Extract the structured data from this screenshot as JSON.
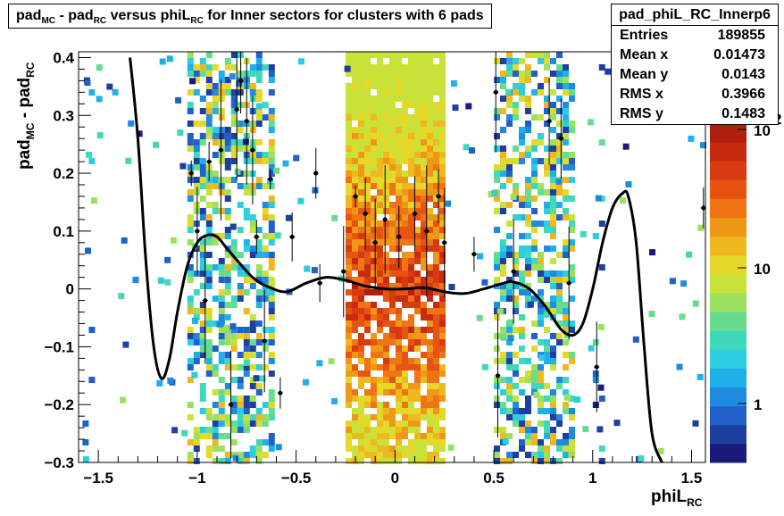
{
  "title": {
    "parts": [
      {
        "t": "pad"
      },
      {
        "sub": "MC"
      },
      {
        "t": " - pad"
      },
      {
        "sub": "RC"
      },
      {
        "t": " versus phiL"
      },
      {
        "sub": "RC"
      },
      {
        "t": " for Inner sectors for clusters with 6 pads"
      }
    ]
  },
  "stats": {
    "name": "pad_phiL_RC_Innerp6",
    "rows": [
      {
        "label": "Entries",
        "value": "189855"
      },
      {
        "label": "Mean x",
        "value": "0.01473"
      },
      {
        "label": "Mean y",
        "value": "0.0143"
      },
      {
        "label": "RMS x",
        "value": "0.3966"
      },
      {
        "label": "RMS y",
        "value": "0.1483"
      }
    ]
  },
  "chart_data": {
    "type": "heatmap",
    "title": "pad_MC - pad_RC versus phiL_RC for Inner sectors for clusters with 6 pads",
    "xlabel": "phiL_RC",
    "ylabel": "pad_MC - pad_RC",
    "xlim": [
      -1.6,
      1.57
    ],
    "ylim": [
      -0.3,
      0.41
    ],
    "x_ticks": [
      "-1.5",
      "-1",
      "-0.5",
      "0",
      "0.5",
      "1",
      "1.5"
    ],
    "y_ticks": [
      "-0.3",
      "-0.2",
      "-0.1",
      "0",
      "0.1",
      "0.2",
      "0.3",
      "0.4"
    ],
    "z_scale": "log",
    "z_ticks": [
      "1",
      "10",
      "10^2"
    ],
    "palette": [
      "#1a1a7a",
      "#1f3fa0",
      "#2060c8",
      "#1f8adf",
      "#1fb0ea",
      "#2ccde0",
      "#3fd8b8",
      "#66dc8e",
      "#9ce060",
      "#c9e23a",
      "#e6d828",
      "#efb820",
      "#ef9818",
      "#ef7414",
      "#e75412",
      "#d83a10",
      "#c82a0e",
      "#b01e0c"
    ],
    "density_bands": [
      {
        "x_range": [
          -1.58,
          -1.53
        ],
        "level": "sparse",
        "z_approx": 1
      },
      {
        "x_range": [
          -1.05,
          -0.62
        ],
        "level": "medium",
        "z_approx": 10
      },
      {
        "x_range": [
          -0.25,
          0.25
        ],
        "level": "dense",
        "z_approx": 300
      },
      {
        "x_range": [
          0.5,
          0.9
        ],
        "level": "medium",
        "z_approx": 10
      },
      {
        "x_range": [
          1.0,
          1.05
        ],
        "level": "sparse",
        "z_approx": 2
      }
    ],
    "profile": {
      "x": [
        -1.34,
        -1.3,
        -1.26,
        -1.22,
        -1.18,
        -1.14,
        -1.1,
        -1.05,
        -1.0,
        -0.95,
        -0.9,
        -0.85,
        -0.8,
        -0.72,
        -0.65,
        -0.55,
        -0.45,
        -0.35,
        -0.25,
        -0.15,
        -0.05,
        0.05,
        0.15,
        0.25,
        0.35,
        0.45,
        0.55,
        0.6,
        0.68,
        0.76,
        0.84,
        0.9,
        0.95,
        1.0,
        1.05,
        1.1,
        1.15,
        1.18,
        1.22,
        1.26,
        1.3,
        1.35
      ],
      "y": [
        0.4,
        0.26,
        0.05,
        -0.1,
        -0.155,
        -0.12,
        -0.04,
        0.04,
        0.08,
        0.093,
        0.09,
        0.07,
        0.05,
        0.02,
        0.005,
        -0.005,
        0.01,
        0.02,
        0.015,
        0.005,
        0.0,
        0.0,
        0.002,
        -0.005,
        -0.008,
        0.0,
        0.01,
        0.012,
        0.0,
        -0.03,
        -0.07,
        -0.08,
        -0.06,
        0.0,
        0.08,
        0.14,
        0.165,
        0.16,
        0.08,
        -0.1,
        -0.25,
        -0.3
      ]
    },
    "points": [
      {
        "x": -1.03,
        "y": 0.2
      },
      {
        "x": -1.0,
        "y": 0.1
      },
      {
        "x": -0.96,
        "y": -0.02
      },
      {
        "x": -0.94,
        "y": 0.22
      },
      {
        "x": -0.88,
        "y": 0.24
      },
      {
        "x": -0.83,
        "y": -0.2
      },
      {
        "x": -0.8,
        "y": 0.31
      },
      {
        "x": -0.78,
        "y": 0.36
      },
      {
        "x": -0.75,
        "y": 0.29
      },
      {
        "x": -0.72,
        "y": 0.24
      },
      {
        "x": -0.7,
        "y": 0.09
      },
      {
        "x": -0.66,
        "y": -0.09
      },
      {
        "x": -0.63,
        "y": 0.19
      },
      {
        "x": -0.58,
        "y": -0.18
      },
      {
        "x": -0.52,
        "y": 0.09
      },
      {
        "x": -0.4,
        "y": 0.2
      },
      {
        "x": -0.38,
        "y": 0.01
      },
      {
        "x": -0.26,
        "y": 0.03
      },
      {
        "x": -0.2,
        "y": 0.16
      },
      {
        "x": -0.15,
        "y": 0.13
      },
      {
        "x": -0.1,
        "y": 0.08
      },
      {
        "x": -0.05,
        "y": 0.12
      },
      {
        "x": 0.02,
        "y": 0.09
      },
      {
        "x": 0.1,
        "y": 0.13
      },
      {
        "x": 0.16,
        "y": 0.1
      },
      {
        "x": 0.22,
        "y": 0.16
      },
      {
        "x": 0.25,
        "y": 0.08
      },
      {
        "x": 0.4,
        "y": 0.06
      },
      {
        "x": 0.51,
        "y": 0.34
      },
      {
        "x": 0.52,
        "y": -0.15
      },
      {
        "x": 0.6,
        "y": 0.03
      },
      {
        "x": 0.78,
        "y": 0.29
      },
      {
        "x": 0.84,
        "y": 0.26
      },
      {
        "x": 0.88,
        "y": 0.01
      },
      {
        "x": 1.02,
        "y": -0.135
      },
      {
        "x": 1.56,
        "y": 0.14
      }
    ]
  }
}
